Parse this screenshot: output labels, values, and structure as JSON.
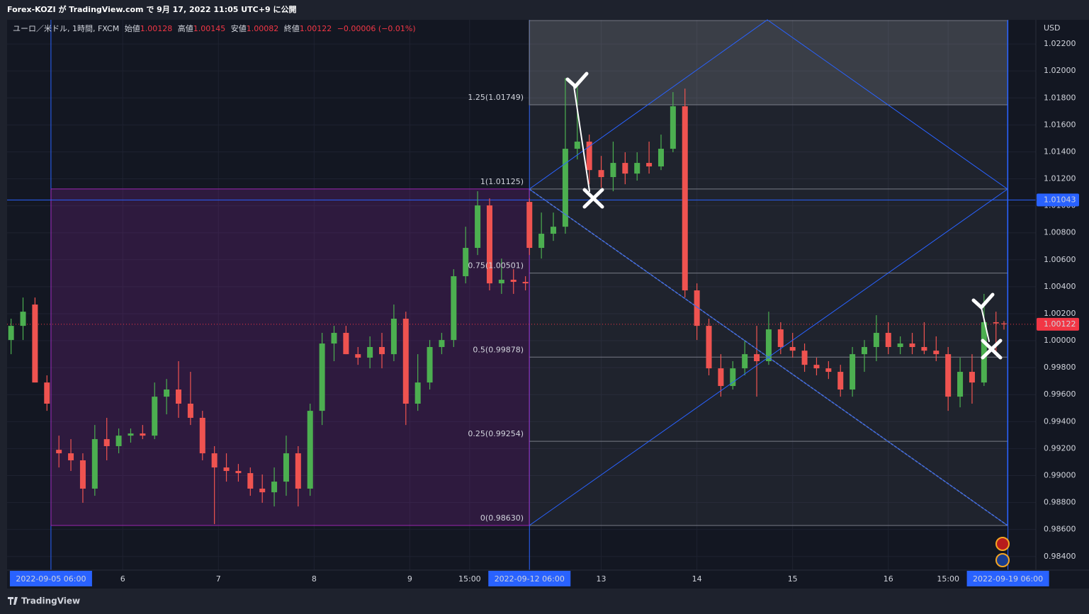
{
  "header": {
    "publisher": "Forex-KOZI が TradingView.com で 9月 17, 2022 11:05 UTC+9 に公開"
  },
  "footer": {
    "brand": "TradingView"
  },
  "chart_data": {
    "type": "candlestick",
    "legend": {
      "symbol": "ユーロ／米ドル, 1時間, FXCM",
      "open_label": "始値",
      "open": 1.00128,
      "high_label": "高値",
      "high": 1.00145,
      "low_label": "安値",
      "low": 1.00082,
      "close_label": "終値",
      "close": 1.00122,
      "change": "−0.00006 (−0.01%)"
    },
    "y_unit": "USD",
    "up_color": "#4caf50",
    "down_color": "#ef5350",
    "xlim": [
      -11,
      247
    ],
    "ylim": [
      0.98299,
      1.02379
    ],
    "xticks": [
      {
        "value": 0,
        "label": "2022-09-05  06:00"
      },
      {
        "value": 18,
        "label": "6"
      },
      {
        "value": 42,
        "label": "7"
      },
      {
        "value": 66,
        "label": "8"
      },
      {
        "value": 90,
        "label": "9"
      },
      {
        "value": 105,
        "label": "15:00"
      },
      {
        "value": 120,
        "label": "2022-09-12  06:00"
      },
      {
        "value": 138,
        "label": "13"
      },
      {
        "value": 162,
        "label": "14"
      },
      {
        "value": 186,
        "label": "15"
      },
      {
        "value": 210,
        "label": "16"
      },
      {
        "value": 225,
        "label": "15:00"
      },
      {
        "value": 240,
        "label": "2022-09-19  06:00"
      }
    ],
    "yticks": [
      {
        "value": 0.984,
        "label": "0.98400"
      },
      {
        "value": 0.986,
        "label": "0.98600"
      },
      {
        "value": 0.988,
        "label": "0.98800"
      },
      {
        "value": 0.99,
        "label": "0.99000"
      },
      {
        "value": 0.992,
        "label": "0.99200"
      },
      {
        "value": 0.994,
        "label": "0.99400"
      },
      {
        "value": 0.996,
        "label": "0.99600"
      },
      {
        "value": 0.998,
        "label": "0.99800"
      },
      {
        "value": 1.0,
        "label": "1.00000"
      },
      {
        "value": 1.002,
        "label": "1.00200"
      },
      {
        "value": 1.004,
        "label": "1.00400"
      },
      {
        "value": 1.006,
        "label": "1.00600"
      },
      {
        "value": 1.008,
        "label": "1.00800"
      },
      {
        "value": 1.01,
        "label": "1.01000"
      },
      {
        "value": 1.012,
        "label": "1.01200"
      },
      {
        "value": 1.014,
        "label": "1.01400"
      },
      {
        "value": 1.016,
        "label": "1.01600"
      },
      {
        "value": 1.018,
        "label": "1.01800"
      },
      {
        "value": 1.02,
        "label": "1.02000"
      },
      {
        "value": 1.022,
        "label": "1.02200"
      }
    ],
    "horizontal_line": 1.01043,
    "last_price": 1.00122,
    "fib_levels": [
      {
        "value": 1.01749,
        "label": "1.25(1.01749)"
      },
      {
        "value": 1.01125,
        "label": "1(1.01125)"
      },
      {
        "value": 1.00501,
        "label": "0.75(1.00501)"
      },
      {
        "value": 0.99878,
        "label": "0.5(0.99878)"
      },
      {
        "value": 0.99254,
        "label": "0.25(0.99254)"
      },
      {
        "value": 0.9863,
        "label": "0(0.98630)"
      }
    ],
    "x": [
      -10,
      -7,
      -4,
      -1,
      2,
      5,
      8,
      11,
      14,
      17,
      20,
      23,
      26,
      29,
      32,
      35,
      38,
      41,
      44,
      47,
      50,
      53,
      56,
      59,
      62,
      65,
      68,
      71,
      74,
      77,
      80,
      83,
      86,
      89,
      92,
      95,
      98,
      101,
      104,
      107,
      110,
      113,
      116,
      119,
      120,
      123,
      126,
      129,
      132,
      135,
      138,
      141,
      144,
      147,
      150,
      153,
      156,
      159,
      162,
      165,
      168,
      171,
      174,
      177,
      180,
      183,
      186,
      189,
      192,
      195,
      198,
      201,
      204,
      207,
      210,
      213,
      216,
      219,
      222,
      225,
      228,
      231,
      234,
      237,
      239
    ],
    "open": [
      1.00005,
      1.0011,
      1.00268,
      0.9969,
      0.99191,
      0.99165,
      0.99113,
      0.98903,
      0.9927,
      0.99218,
      0.99296,
      0.99312,
      0.99296,
      0.99585,
      0.99638,
      0.99533,
      0.99428,
      0.99165,
      0.9906,
      0.99034,
      0.99018,
      0.98903,
      0.98876,
      0.98955,
      0.99165,
      0.98903,
      0.9948,
      0.99979,
      1.00058,
      0.999,
      0.99874,
      0.99953,
      0.999,
      1.00163,
      0.99533,
      0.9969,
      0.99953,
      1.00005,
      1.00478,
      1.00688,
      1.01003,
      1.00425,
      1.00452,
      1.00436,
      1.01029,
      1.00688,
      1.00793,
      1.00845,
      1.01423,
      1.01476,
      1.01265,
      1.01213,
      1.01318,
      1.01239,
      1.01318,
      1.01292,
      1.01423,
      1.01738,
      1.00373,
      1.0011,
      0.99795,
      0.99664,
      0.99795,
      0.999,
      0.99848,
      1.00084,
      0.99953,
      0.99926,
      0.99821,
      0.99795,
      0.99769,
      0.99638,
      0.999,
      0.99953,
      1.00058,
      0.99953,
      0.99979,
      0.99953,
      0.99926,
      0.999,
      0.99585,
      0.99769,
      0.9969,
      1.00137,
      1.00128
    ],
    "high": [
      1.00163,
      1.0032,
      1.0032,
      0.99743,
      0.99296,
      0.9927,
      0.99165,
      0.99375,
      0.99428,
      0.99349,
      0.99349,
      0.99375,
      0.9969,
      0.99716,
      0.99848,
      0.99769,
      0.9948,
      0.99218,
      0.99165,
      0.99086,
      0.9906,
      0.99008,
      0.9906,
      0.99296,
      0.99218,
      0.99533,
      1.00058,
      1.0011,
      1.0011,
      0.99953,
      1.00032,
      1.00058,
      1.00268,
      1.00215,
      0.999,
      1.00005,
      1.00058,
      1.0053,
      1.00845,
      1.01108,
      1.01055,
      1.00609,
      1.0053,
      1.00478,
      1.01055,
      1.0095,
      1.0095,
      1.01948,
      1.01922,
      1.01528,
      1.0137,
      1.01476,
      1.01397,
      1.01397,
      1.01476,
      1.01528,
      1.01843,
      1.01869,
      1.00425,
      1.00163,
      0.999,
      0.99848,
      1.00005,
      1.0011,
      1.00215,
      1.00137,
      1.00058,
      0.99979,
      0.99874,
      0.99848,
      0.99821,
      0.99953,
      1.00005,
      1.00189,
      1.00137,
      1.00032,
      1.00058,
      1.00137,
      1.00032,
      0.99953,
      0.99874,
      0.999,
      1.00347,
      1.00215,
      1.00145
    ],
    "low": [
      0.999,
      1.00005,
      0.9969,
      0.9948,
      0.9906,
      0.99034,
      0.98798,
      0.9885,
      0.99113,
      0.99165,
      0.99244,
      0.9927,
      0.9927,
      0.99454,
      0.99428,
      0.99375,
      0.99113,
      0.9864,
      0.98955,
      0.98955,
      0.9885,
      0.98798,
      0.98771,
      0.9885,
      0.98771,
      0.9885,
      0.99375,
      0.99848,
      0.999,
      0.99821,
      0.99795,
      0.99795,
      0.99848,
      0.99375,
      0.9948,
      0.99638,
      0.999,
      0.99953,
      1.00425,
      1.00635,
      1.00373,
      1.00347,
      1.00347,
      1.00373,
      1.00635,
      1.00609,
      1.0074,
      1.00793,
      1.01344,
      1.0116,
      1.01134,
      1.01108,
      1.0116,
      1.01187,
      1.01239,
      1.01265,
      1.01397,
      1.0032,
      1.00005,
      0.99743,
      0.99585,
      0.99638,
      0.99743,
      0.99585,
      0.99821,
      0.999,
      0.99874,
      0.99769,
      0.99743,
      0.99716,
      0.99585,
      0.99585,
      0.99769,
      0.99848,
      0.999,
      0.999,
      0.999,
      0.999,
      0.99848,
      0.9948,
      0.99506,
      0.99533,
      0.99664,
      0.999,
      1.00082
    ],
    "close": [
      1.0011,
      1.00215,
      0.9969,
      0.99533,
      0.99165,
      0.99113,
      0.98903,
      0.9927,
      0.99218,
      0.99296,
      0.99312,
      0.99296,
      0.99585,
      0.99638,
      0.99533,
      0.99428,
      0.99165,
      0.9906,
      0.99034,
      0.99018,
      0.98903,
      0.98876,
      0.98955,
      0.99165,
      0.98903,
      0.9948,
      0.99979,
      1.00058,
      0.999,
      0.99874,
      0.99953,
      0.999,
      1.00163,
      0.99533,
      0.9969,
      0.99953,
      1.00005,
      1.00478,
      1.00688,
      1.01003,
      1.00425,
      1.00452,
      1.00436,
      1.00425,
      1.00688,
      1.00793,
      1.00845,
      1.01423,
      1.01476,
      1.01265,
      1.01213,
      1.01318,
      1.01239,
      1.01318,
      1.01292,
      1.01423,
      1.01738,
      1.00373,
      1.0011,
      0.99795,
      0.99664,
      0.99795,
      0.999,
      0.99848,
      1.00084,
      0.99953,
      0.99926,
      0.99821,
      0.99795,
      0.99769,
      0.99638,
      0.999,
      0.99953,
      1.00058,
      0.99953,
      0.99979,
      0.99953,
      0.99926,
      0.999,
      0.99585,
      0.99769,
      0.9969,
      1.00137,
      1.00128,
      1.00122
    ]
  }
}
